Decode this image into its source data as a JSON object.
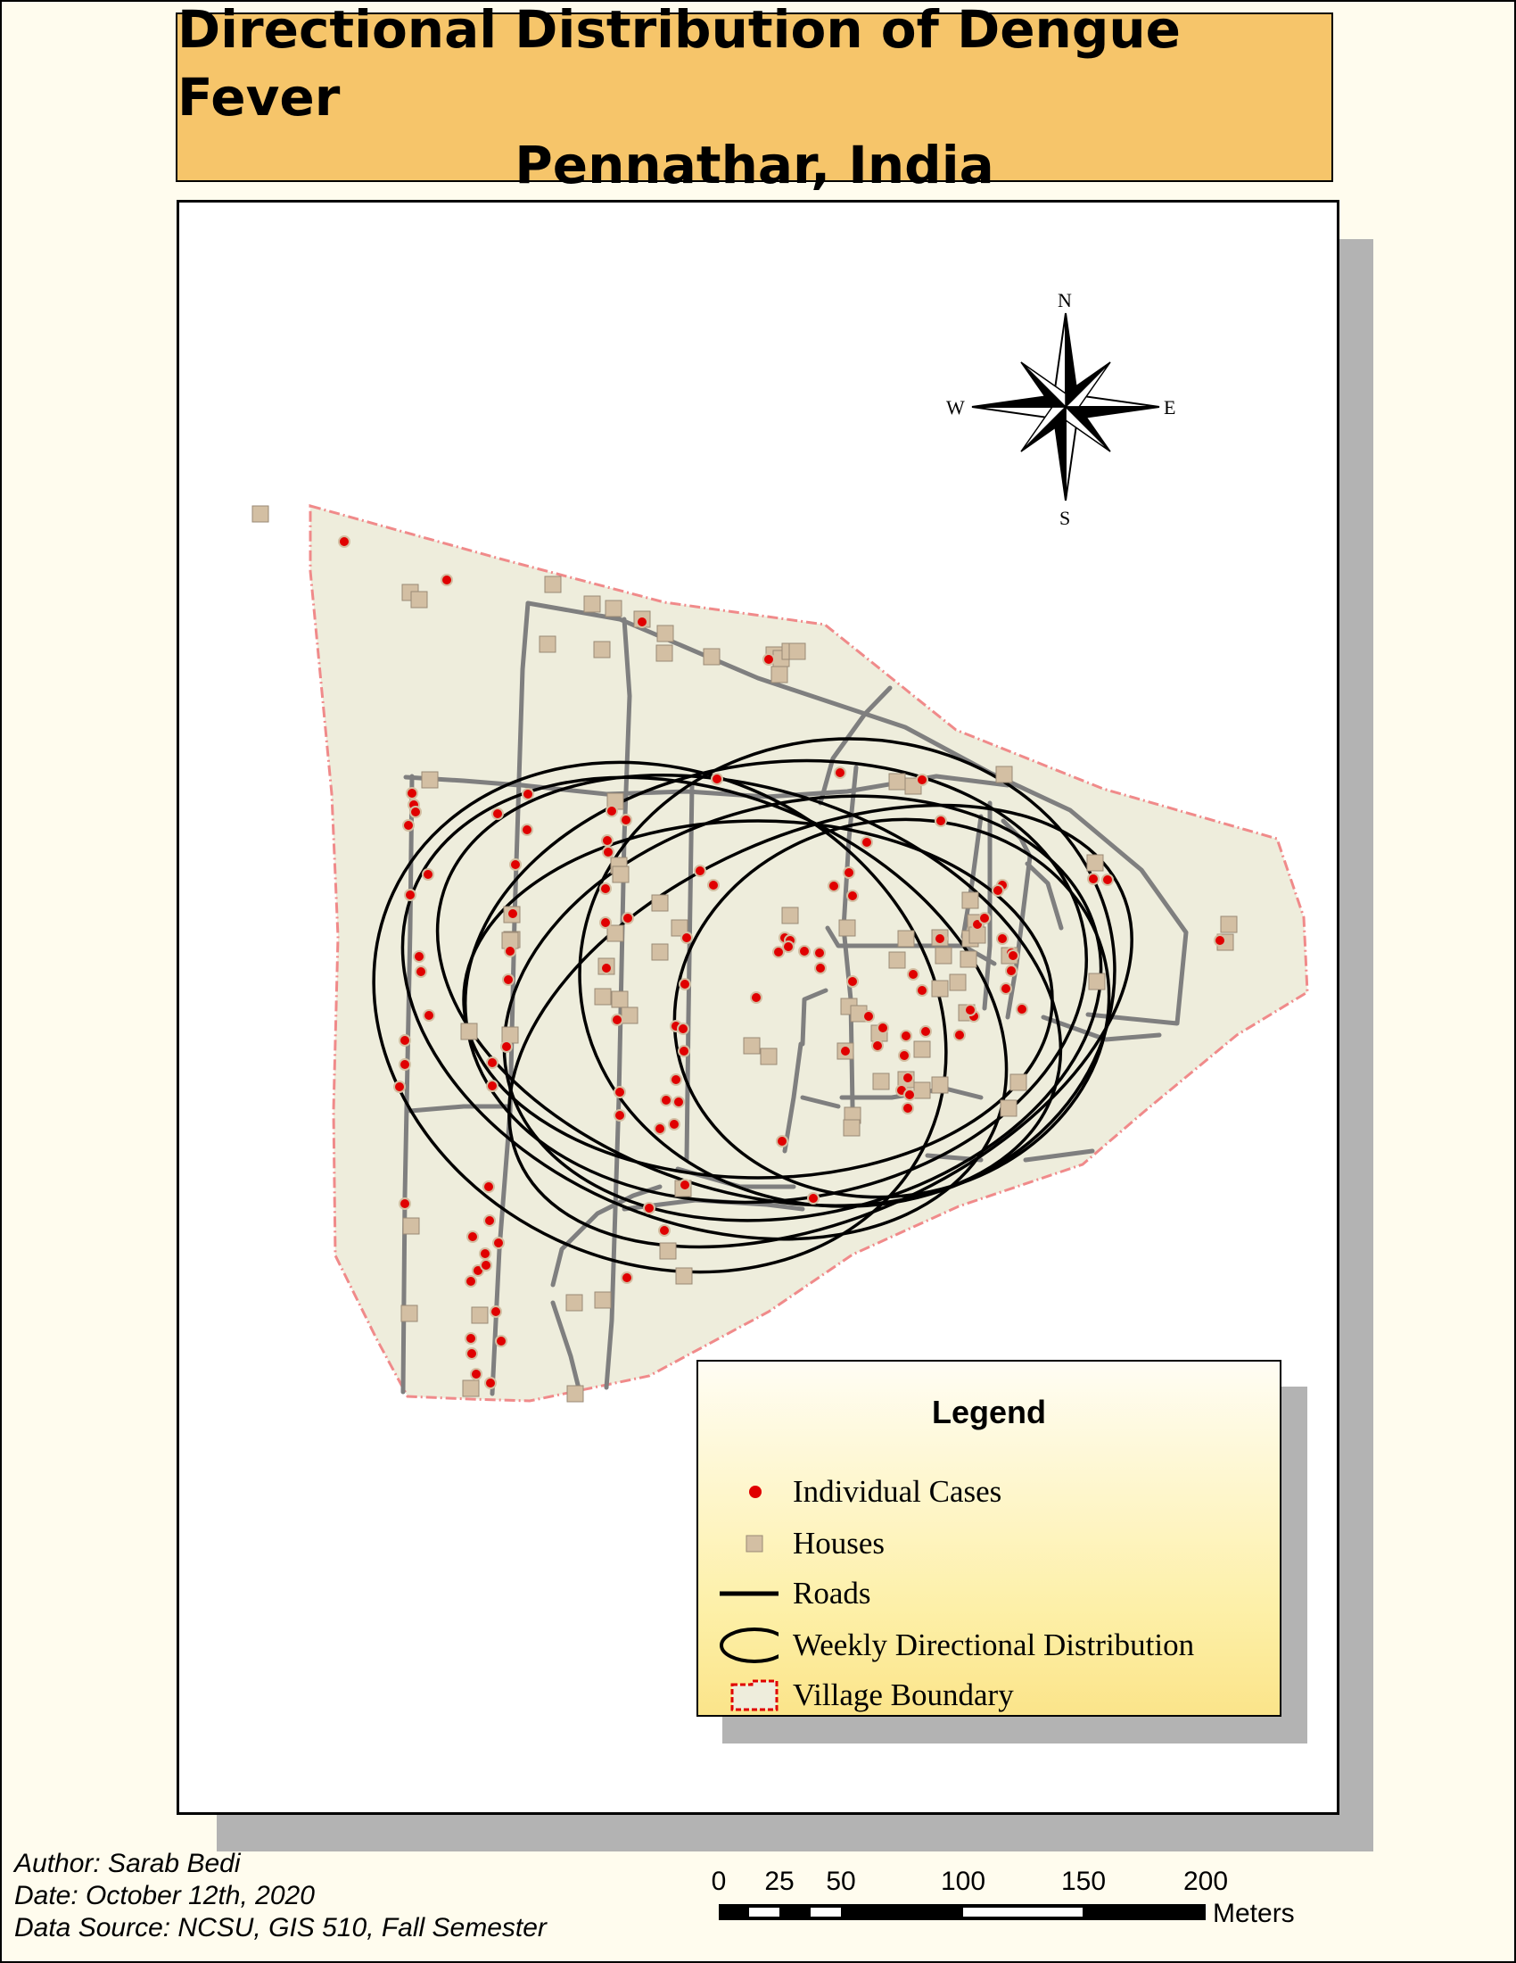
{
  "title": {
    "line1": "Directional Distribution of Dengue Fever",
    "line2": "Pennathar, India"
  },
  "compass": {
    "north": "N",
    "south": "S",
    "east": "E",
    "west": "W"
  },
  "legend": {
    "title": "Legend",
    "items": [
      {
        "label": "Individual Cases",
        "symbol": "red-dot"
      },
      {
        "label": "Houses",
        "symbol": "tan-square"
      },
      {
        "label": "Roads",
        "symbol": "line"
      },
      {
        "label": "Weekly Directional Distribution",
        "symbol": "ellipse"
      },
      {
        "label": "Village Boundary",
        "symbol": "polygon"
      }
    ]
  },
  "credits": {
    "author": "Author: Sarab Bedi",
    "date": "Date: October 12th, 2020",
    "source": "Data Source: NCSU, GIS 510, Fall Semester"
  },
  "scale_bar": {
    "ticks": [
      "0",
      "25",
      "50",
      "100",
      "150",
      "200"
    ],
    "unit": "Meters"
  },
  "colors": {
    "title_fill": "#f6c56a",
    "village_fill": "#eeeddc",
    "boundary": "#f08a8a",
    "case": "#e00000",
    "house": "#d3bfa3",
    "road": "#7f7f7f",
    "ellipse": "#000000"
  }
}
